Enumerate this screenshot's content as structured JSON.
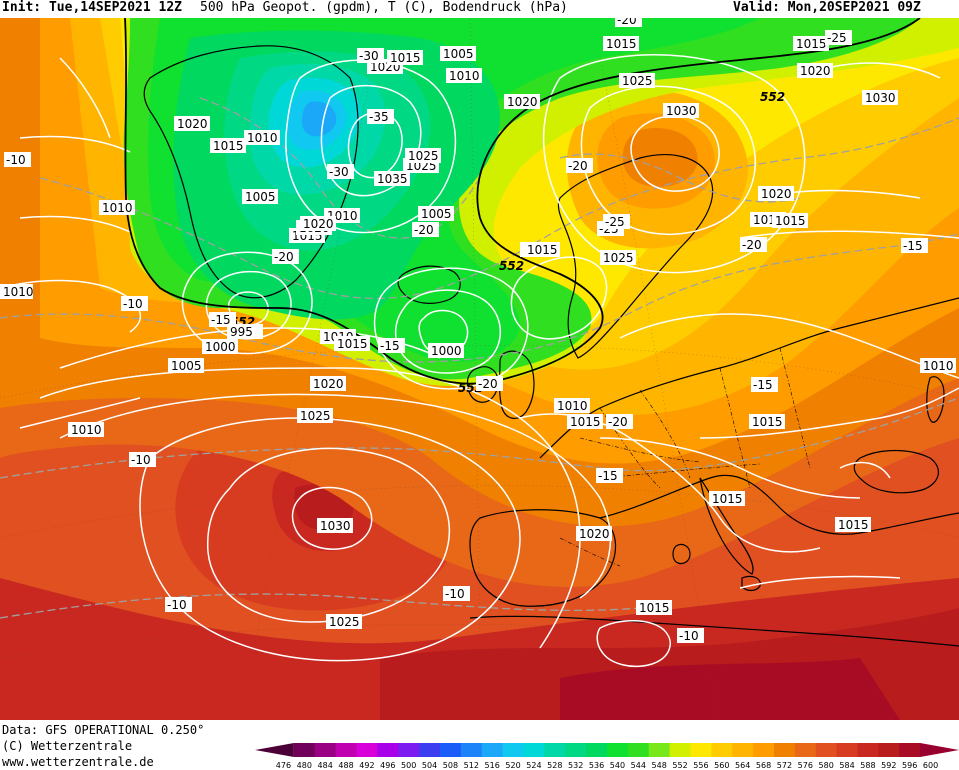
{
  "header": {
    "init": "Init: Tue,14SEP2021 12Z",
    "title": "500 hPa Geopot. (gpdm), T (C), Bodendruck (hPa)",
    "valid": "Valid: Mon,20SEP2021 09Z"
  },
  "footer": {
    "data_line": "Data: GFS OPERATIONAL 0.250°",
    "copyright": "(C) Wetterzentrale",
    "website": "www.wetterzentrale.de"
  },
  "colors": {
    "background": "#ffffff",
    "isobar": "#ffffff",
    "isotherm": "#a0a0a0",
    "coastline": "#000000"
  },
  "legend": {
    "values": [
      "476",
      "480",
      "484",
      "488",
      "492",
      "496",
      "500",
      "504",
      "508",
      "512",
      "516",
      "520",
      "524",
      "528",
      "532",
      "536",
      "540",
      "544",
      "548",
      "552",
      "556",
      "560",
      "564",
      "568",
      "572",
      "576",
      "580",
      "584",
      "588",
      "592",
      "596",
      "600"
    ],
    "colors": [
      "#4b0037",
      "#70005a",
      "#9a0084",
      "#c000b0",
      "#d800d8",
      "#a800e8",
      "#7c1cf0",
      "#3c3cf0",
      "#1c5cf8",
      "#1c84f8",
      "#1ca8f8",
      "#10c8f0",
      "#00d8d8",
      "#00d8a8",
      "#00d884",
      "#00d860",
      "#10e030",
      "#30e020",
      "#78e81c",
      "#d0f000",
      "#ffe800",
      "#ffcc00",
      "#ffb400",
      "#ff9c00",
      "#f08000",
      "#e86818",
      "#e05020",
      "#d83c20",
      "#c82820",
      "#b81c1c",
      "#a80c24",
      "#980030"
    ],
    "min_label": "476",
    "max_label": "600"
  },
  "map": {
    "geopotential_labels": [
      "552",
      "552",
      "552",
      "552"
    ],
    "pressure_labels": [
      "1005",
      "1015",
      "1010",
      "1020",
      "1015",
      "1010",
      "1020",
      "1030",
      "1015",
      "1025",
      "1015",
      "1010",
      "1020",
      "1015",
      "1010",
      "1005",
      "1020",
      "1020",
      "1015",
      "1010",
      "1035",
      "1025",
      "1005",
      "1010",
      "1015",
      "1030",
      "1025",
      "1020",
      "1015",
      "1025",
      "1015",
      "1010",
      "1005",
      "1000",
      "995",
      "1000",
      "1010",
      "1015",
      "1020",
      "1025",
      "1030",
      "1010",
      "1015",
      "1015",
      "1015",
      "1015",
      "1020",
      "1025",
      "1015",
      "1020"
    ],
    "temperature_labels": [
      "-20",
      "-25",
      "-30",
      "-35",
      "-30",
      "-20",
      "-25",
      "-20",
      "-15",
      "-10",
      "-10",
      "-20",
      "-15",
      "-15",
      "-20",
      "-20",
      "-15",
      "-15",
      "-10",
      "-10",
      "-10",
      "-10",
      "-25",
      "-20"
    ],
    "highs": [
      "1030",
      "1030"
    ],
    "lows": [
      "995",
      "1000",
      "1000"
    ]
  }
}
